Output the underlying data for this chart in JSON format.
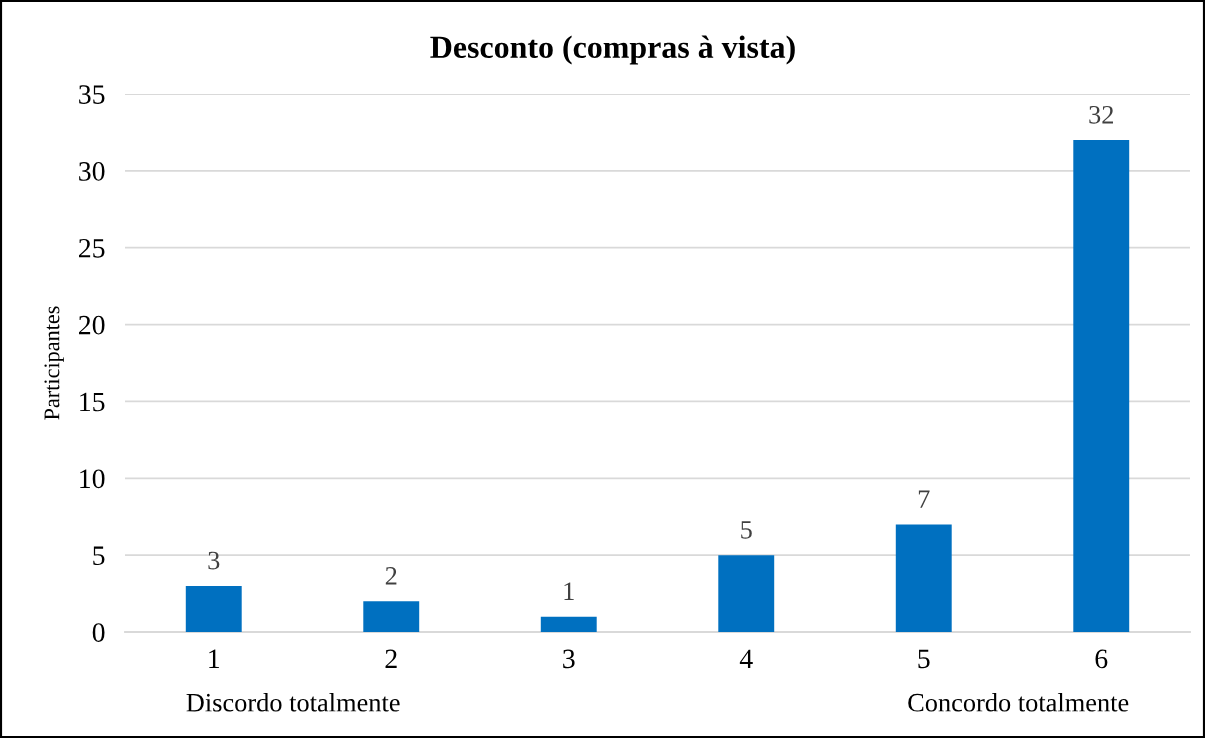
{
  "chart_data": {
    "type": "bar",
    "title": "Desconto (compras à vista)",
    "ylabel": "Participantes",
    "categories": [
      "1",
      "2",
      "3",
      "4",
      "5",
      "6"
    ],
    "values": [
      3,
      2,
      1,
      5,
      7,
      32
    ],
    "color": "#0070c0",
    "ylim": [
      0,
      35
    ],
    "yticks": [
      0,
      5,
      10,
      15,
      20,
      25,
      30,
      35
    ],
    "grid": "y",
    "data_labels": true,
    "annotations": [
      "Discordo totalmente",
      "Concordo totalmente"
    ]
  }
}
